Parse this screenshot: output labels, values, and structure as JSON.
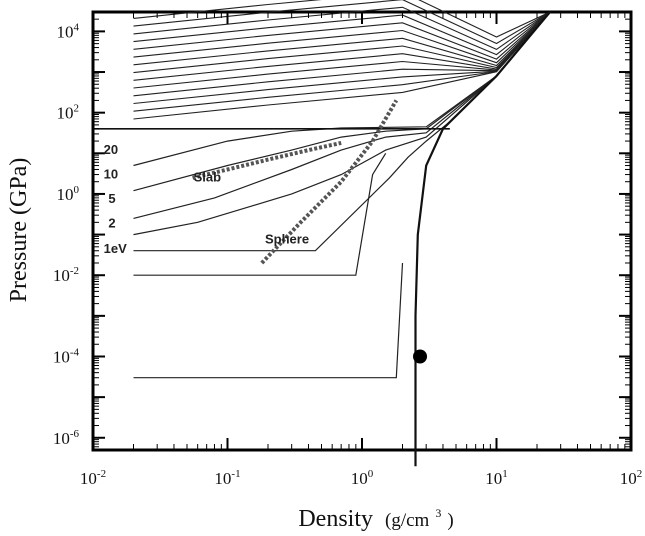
{
  "chart_data": {
    "type": "line",
    "xlabel_main": "Density",
    "xlabel_unit": "(g/cm",
    "xlabel_sup": "3",
    "xlabel_close": ")",
    "ylabel": "Pressure (GPa)",
    "x_scale": "log",
    "y_scale": "log",
    "xlim": [
      0.01,
      100
    ],
    "ylim": [
      5e-07,
      30000
    ],
    "x_ticks": [
      {
        "base": "10",
        "exp": "-2",
        "value": 0.01
      },
      {
        "base": "10",
        "exp": "-1",
        "value": 0.1
      },
      {
        "base": "10",
        "exp": "0",
        "value": 1
      },
      {
        "base": "10",
        "exp": "1",
        "value": 10
      },
      {
        "base": "10",
        "exp": "2",
        "value": 100
      }
    ],
    "y_ticks": [
      {
        "base": "10",
        "exp": "4",
        "value": 10000
      },
      {
        "base": "10",
        "exp": "2",
        "value": 100
      },
      {
        "base": "10",
        "exp": "0",
        "value": 1
      },
      {
        "base": "10",
        "exp": "-2",
        "value": 0.01
      },
      {
        "base": "10",
        "exp": "-4",
        "value": 0.0001
      },
      {
        "base": "10",
        "exp": "-6",
        "value": 1e-06
      }
    ],
    "grid": false,
    "legend": "none",
    "annotations": [
      {
        "text": "20",
        "x": 0.012,
        "y": 9.5
      },
      {
        "text": "10",
        "x": 0.012,
        "y": 2.4
      },
      {
        "text": "5",
        "x": 0.013,
        "y": 0.6
      },
      {
        "text": "2",
        "x": 0.013,
        "y": 0.15
      },
      {
        "text": "1eV",
        "x": 0.012,
        "y": 0.035
      },
      {
        "text": "Slab",
        "x": 0.056,
        "y": 2.0
      },
      {
        "text": "Sphere",
        "x": 0.19,
        "y": 0.06
      }
    ],
    "isotherms": [
      {
        "label": "1eV",
        "points": [
          [
            0.02,
            0.04
          ],
          [
            0.45,
            0.04
          ],
          [
            1.6,
            2.5
          ],
          [
            2.2,
            8
          ],
          [
            3,
            20
          ],
          [
            4.5,
            60
          ],
          [
            10,
            800
          ],
          [
            25,
            30000
          ]
        ]
      },
      {
        "label": "2",
        "points": [
          [
            0.02,
            0.1
          ],
          [
            0.06,
            0.2
          ],
          [
            0.15,
            0.5
          ],
          [
            0.3,
            1
          ],
          [
            0.7,
            3
          ],
          [
            1.5,
            12
          ],
          [
            3,
            25
          ],
          [
            10,
            800
          ],
          [
            25,
            30000
          ]
        ]
      },
      {
        "label": "5",
        "points": [
          [
            0.02,
            0.25
          ],
          [
            0.08,
            0.8
          ],
          [
            0.3,
            4
          ],
          [
            0.7,
            12
          ],
          [
            1.5,
            25
          ],
          [
            3,
            32
          ],
          [
            10,
            800
          ],
          [
            25,
            30000
          ]
        ]
      },
      {
        "label": "10",
        "points": [
          [
            0.02,
            1.2
          ],
          [
            0.1,
            5
          ],
          [
            0.3,
            12
          ],
          [
            0.7,
            25
          ],
          [
            1.5,
            35
          ],
          [
            3,
            40
          ],
          [
            10,
            800
          ],
          [
            25,
            30000
          ]
        ]
      },
      {
        "label": "20",
        "points": [
          [
            0.02,
            5
          ],
          [
            0.1,
            20
          ],
          [
            0.3,
            35
          ],
          [
            0.7,
            42
          ],
          [
            3,
            45
          ],
          [
            10,
            800
          ],
          [
            25,
            30000
          ]
        ]
      }
    ],
    "high_isotherms_count": 14,
    "hugoniot_curves": [
      {
        "name": "cold-curve",
        "points": [
          [
            2.5,
            2e-07
          ],
          [
            2.5,
            0.001
          ],
          [
            2.6,
            0.1
          ],
          [
            3,
            5
          ],
          [
            4,
            40
          ],
          [
            10,
            800
          ],
          [
            25,
            30000
          ]
        ]
      }
    ],
    "regions": [
      {
        "name": "horizontal-line",
        "y": 40,
        "x_range": [
          0.01,
          4.5
        ]
      }
    ],
    "ramps": [
      {
        "points": [
          [
            0.02,
            0.01
          ],
          [
            0.9,
            0.01
          ],
          [
            1.2,
            3
          ],
          [
            1.5,
            10
          ]
        ]
      },
      {
        "points": [
          [
            0.02,
            3e-05
          ],
          [
            1.8,
            3e-05
          ],
          [
            2.0,
            0.02
          ]
        ]
      }
    ],
    "trajectories": [
      {
        "name": "Slab",
        "points": [
          [
            0.055,
            2.5
          ],
          [
            0.1,
            4
          ],
          [
            0.2,
            7
          ],
          [
            0.4,
            12
          ],
          [
            0.7,
            18
          ]
        ]
      },
      {
        "name": "Sphere",
        "points": [
          [
            0.18,
            0.02
          ],
          [
            0.35,
            0.2
          ],
          [
            0.7,
            2
          ],
          [
            1.2,
            20
          ],
          [
            1.8,
            200
          ]
        ]
      }
    ],
    "marker": {
      "x": 2.7,
      "y": 0.0001
    }
  }
}
